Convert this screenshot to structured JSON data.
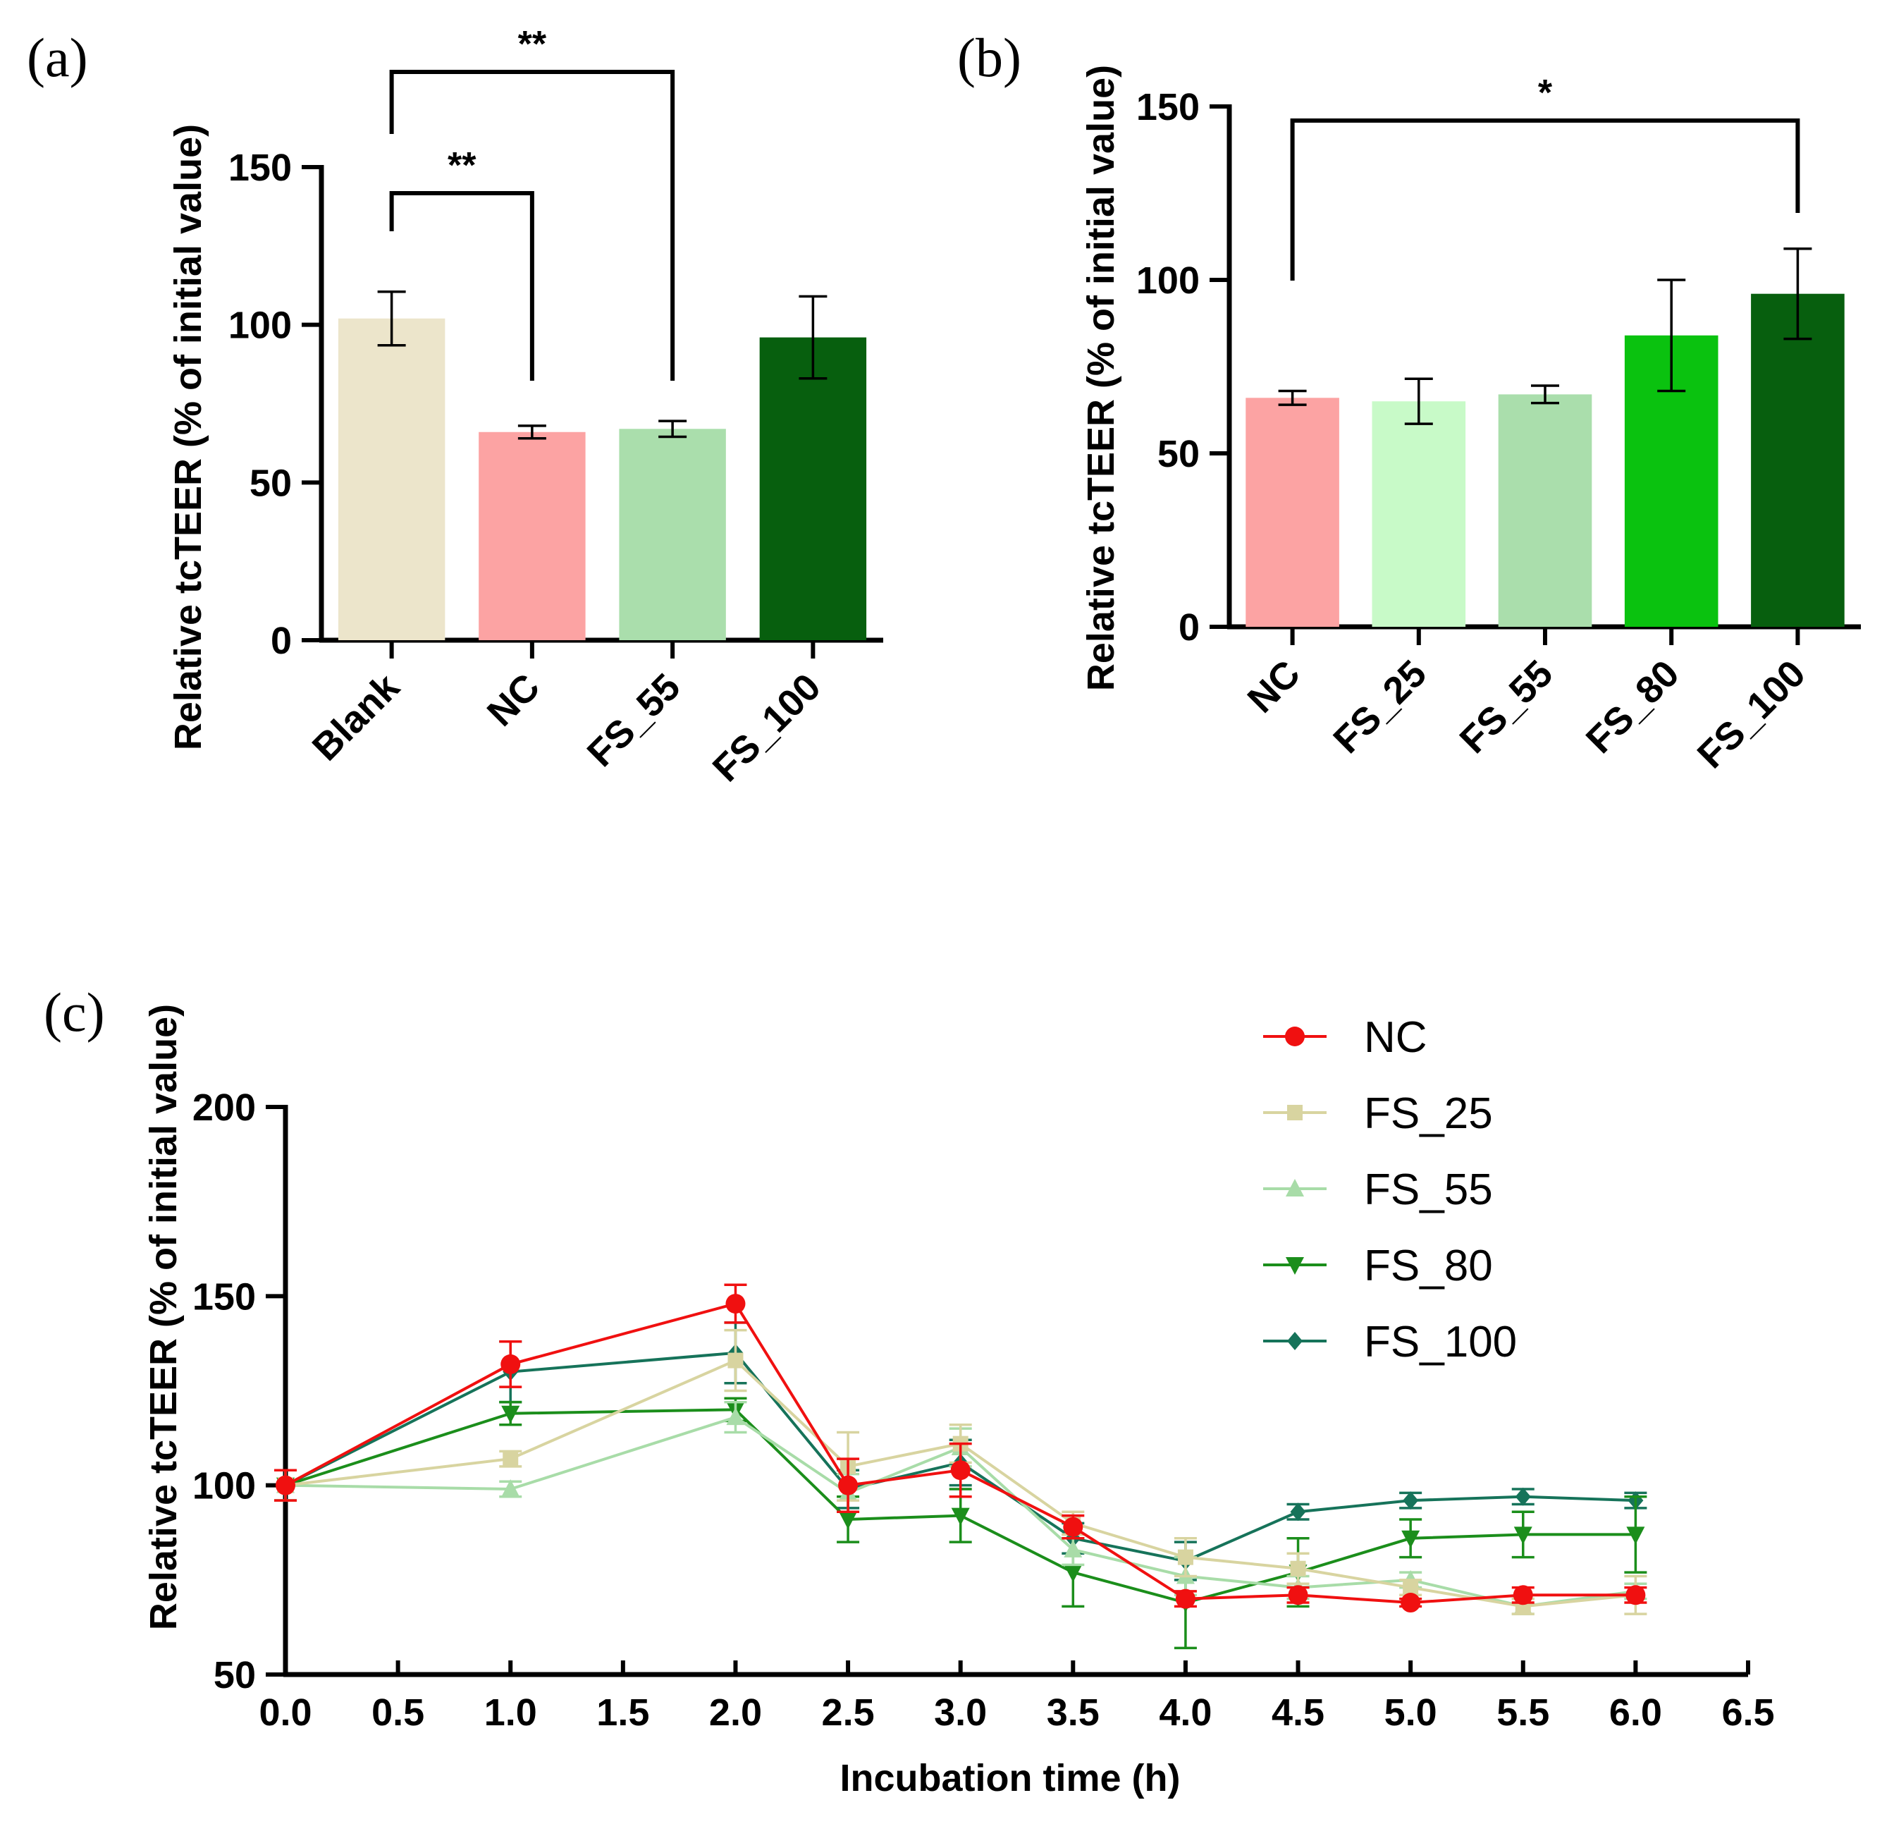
{
  "chart_data": [
    {
      "panel_label": "(a)",
      "type": "bar",
      "ylabel": "Relative tcTEER (% of initial value)",
      "ylim": [
        0,
        150
      ],
      "yticks": [
        "0",
        "50",
        "100",
        "150"
      ],
      "categories": [
        "Blank",
        "NC",
        "FS_55",
        "FS_100"
      ],
      "values": [
        102,
        66,
        67,
        96
      ],
      "errors": [
        8.5,
        2,
        2.5,
        13
      ],
      "colors": [
        "#ece5cb",
        "#fca3a3",
        "#aadeac",
        "#075f0e"
      ],
      "significance": [
        {
          "from": "Blank",
          "to": "NC",
          "label": "**"
        },
        {
          "from": "Blank",
          "to": "FS_55",
          "label": "**"
        }
      ]
    },
    {
      "panel_label": "(b)",
      "type": "bar",
      "ylabel": "Relative tcTEER (% of initial value)",
      "ylim": [
        0,
        150
      ],
      "yticks": [
        "0",
        "50",
        "100",
        "150"
      ],
      "categories": [
        "NC",
        "FS_25",
        "FS_55",
        "FS_80",
        "FS_100"
      ],
      "values": [
        66,
        65,
        67,
        84,
        96
      ],
      "errors": [
        2,
        6.5,
        2.5,
        16,
        13
      ],
      "colors": [
        "#fca3a3",
        "#c8fac8",
        "#aadeac",
        "#0ac20f",
        "#075f0e"
      ],
      "significance": [
        {
          "from": "NC",
          "to": "FS_100",
          "label": "*"
        }
      ]
    },
    {
      "panel_label": "(c)",
      "type": "line",
      "xlabel": "Incubation time (h)",
      "ylabel": "Relative tcTEER (% of initial value)",
      "xlim": [
        0,
        6.5
      ],
      "ylim": [
        50,
        200
      ],
      "xticks": [
        "0.0",
        "0.5",
        "1.0",
        "1.5",
        "2.0",
        "2.5",
        "3.0",
        "3.5",
        "4.0",
        "4.5",
        "5.0",
        "5.5",
        "6.0",
        "6.5"
      ],
      "yticks": [
        "50",
        "100",
        "150",
        "200"
      ],
      "x": [
        0,
        1,
        2,
        2.5,
        3,
        3.5,
        4,
        4.5,
        5,
        5.5,
        6
      ],
      "series": [
        {
          "name": "NC",
          "color": "#f01010",
          "marker": "circle",
          "values": [
            100,
            132,
            148,
            100,
            104,
            89,
            70,
            71,
            69,
            71,
            71
          ],
          "errors": [
            4,
            6,
            5,
            7,
            7,
            3,
            2,
            2,
            1,
            2,
            2
          ]
        },
        {
          "name": "FS_25",
          "color": "#d8d4a0",
          "marker": "square",
          "values": [
            100,
            107,
            133,
            105,
            111,
            90,
            81,
            78,
            73,
            68,
            71
          ],
          "errors": [
            4,
            2,
            8,
            9,
            5,
            3,
            5,
            4,
            2,
            2,
            5
          ]
        },
        {
          "name": "FS_55",
          "color": "#a8dca8",
          "marker": "triangle-up",
          "values": [
            100,
            99,
            118,
            98,
            110,
            83,
            76,
            73,
            75,
            68,
            72
          ],
          "errors": [
            4,
            2,
            4,
            5,
            5,
            4,
            5,
            3,
            2,
            2,
            2
          ]
        },
        {
          "name": "FS_80",
          "color": "#1b8e1b",
          "marker": "triangle-down",
          "values": [
            100,
            119,
            120,
            91,
            92,
            77,
            69,
            77,
            86,
            87,
            87
          ],
          "errors": [
            4,
            3,
            3,
            6,
            7,
            9,
            12,
            9,
            5,
            6,
            10
          ]
        },
        {
          "name": "FS_100",
          "color": "#16735a",
          "marker": "diamond",
          "values": [
            100,
            130,
            135,
            99,
            106,
            86,
            80,
            93,
            96,
            97,
            96
          ],
          "errors": [
            4,
            8,
            8,
            5,
            6,
            4,
            5,
            2,
            2,
            2,
            2
          ]
        }
      ]
    }
  ]
}
